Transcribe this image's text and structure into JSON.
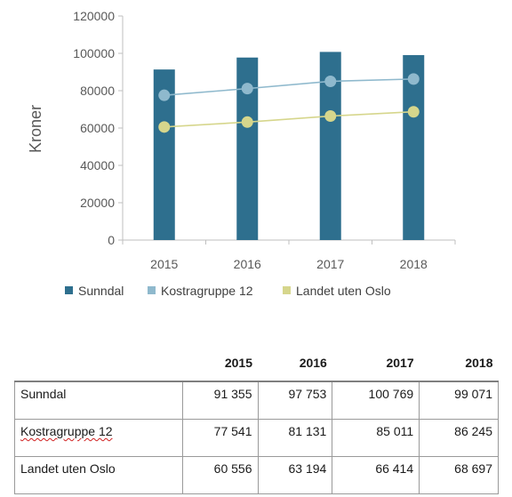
{
  "chart_data": {
    "type": "bar",
    "title": "",
    "xlabel": "",
    "ylabel": "Kroner",
    "ylim": [
      0,
      120000
    ],
    "yticks": [
      "0",
      "20000",
      "40000",
      "60000",
      "80000",
      "100000",
      "120000"
    ],
    "categories": [
      "2015",
      "2016",
      "2017",
      "2018"
    ],
    "series": [
      {
        "name": "Sunndal",
        "kind": "bar",
        "color": "#2e6f8e",
        "values": [
          91355,
          97753,
          100769,
          99071
        ]
      },
      {
        "name": "Kostragruppe 12",
        "kind": "line",
        "color": "#8fb9cd",
        "values": [
          77541,
          81131,
          85011,
          86245
        ]
      },
      {
        "name": "Landet uten Oslo",
        "kind": "line",
        "color": "#d6d68c",
        "values": [
          60556,
          63194,
          66414,
          68697
        ]
      }
    ],
    "legend_position": "bottom"
  },
  "table": {
    "headers": [
      "2015",
      "2016",
      "2017",
      "2018"
    ],
    "rows": [
      {
        "label": "Sunndal",
        "values": [
          "91 355",
          "97 753",
          "100 769",
          "99 071"
        ]
      },
      {
        "label": "Kostragruppe 12",
        "values": [
          "77 541",
          "81 131",
          "85 011",
          "86 245"
        ]
      },
      {
        "label": "Landet uten Oslo",
        "values": [
          "60 556",
          "63 194",
          "66 414",
          "68 697"
        ]
      }
    ]
  }
}
